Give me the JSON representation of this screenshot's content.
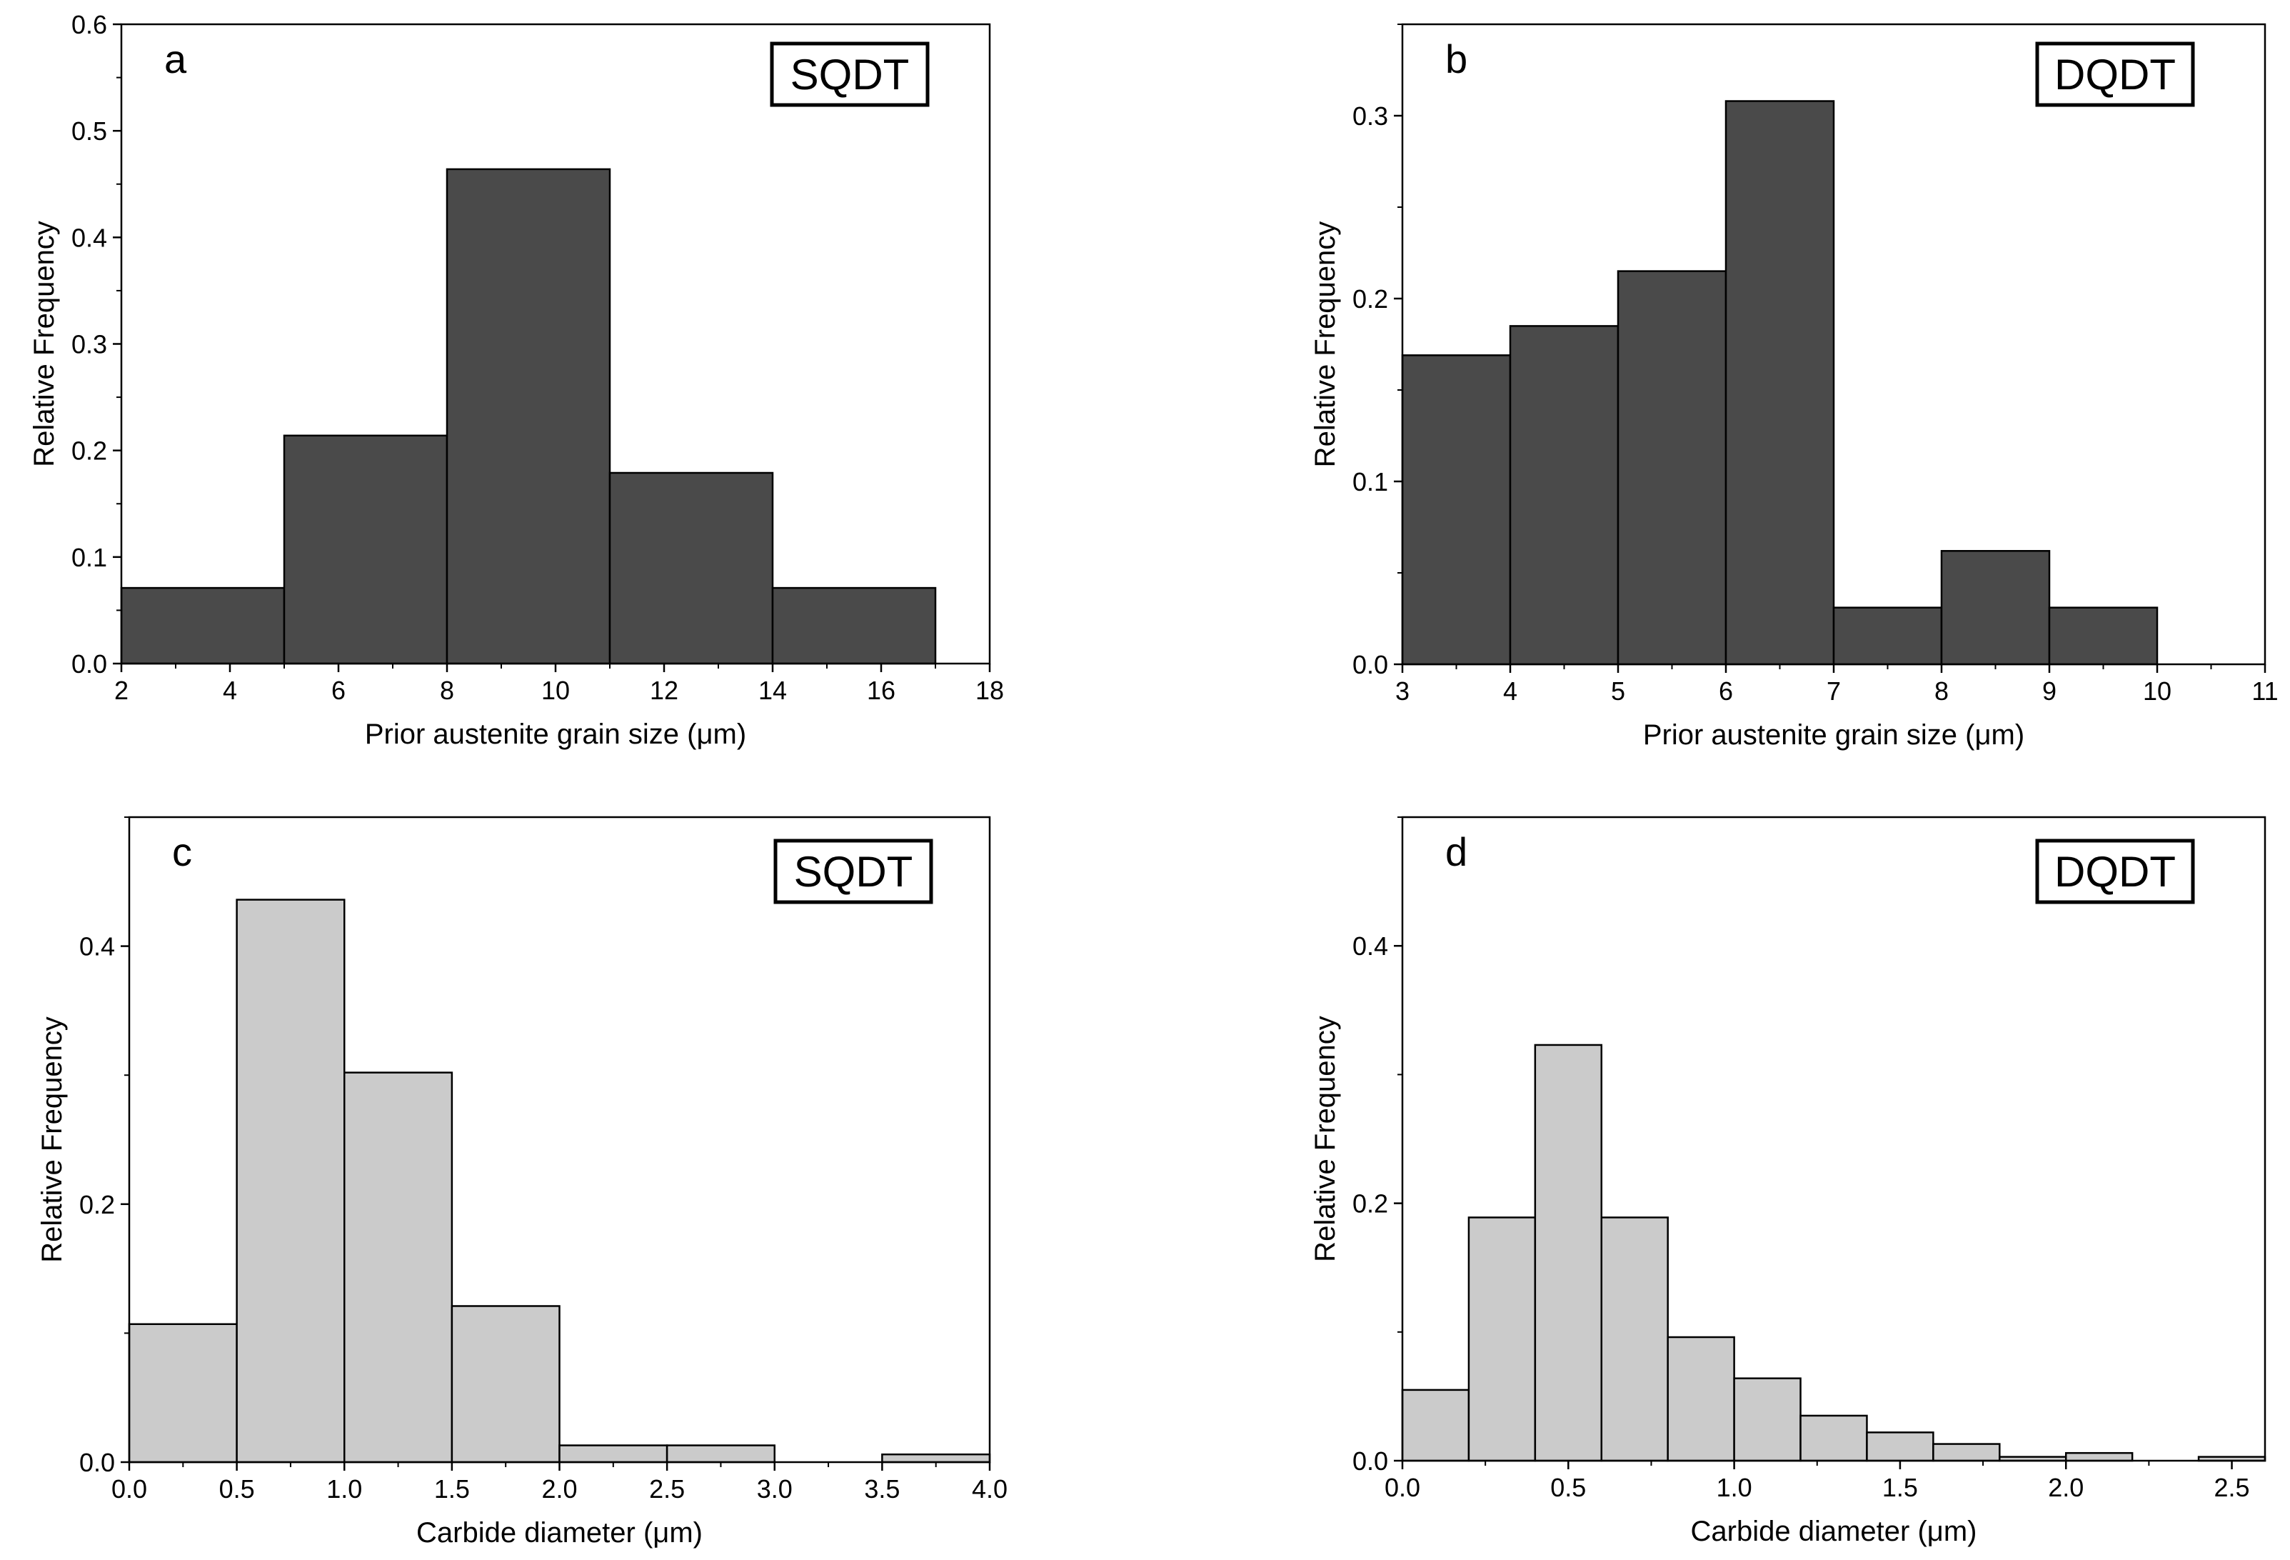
{
  "colors": {
    "dark_bar": "#4a4a4a",
    "light_bar": "#cbcbcb",
    "bar_stroke": "#000000",
    "axis": "#000000"
  },
  "chart_data": [
    {
      "panel": "a",
      "type": "histogram",
      "tag": "SQDT",
      "xlabel": "Prior austenite grain size (μm)",
      "ylabel": "Relative Frequency",
      "xlim": [
        2,
        18
      ],
      "ylim": [
        0,
        0.6
      ],
      "xticks": [
        2,
        4,
        6,
        8,
        10,
        12,
        14,
        16,
        18
      ],
      "xtick_labels": [
        "2",
        "4",
        "6",
        "8",
        "10",
        "12",
        "14",
        "16",
        "18"
      ],
      "yticks": [
        0,
        0.1,
        0.2,
        0.3,
        0.4,
        0.5,
        0.6
      ],
      "ytick_labels": [
        "0.0",
        "0.1",
        "0.2",
        "0.3",
        "0.4",
        "0.5",
        "0.6"
      ],
      "bin_edges": [
        2,
        5,
        8,
        11,
        14,
        17
      ],
      "values": [
        0.071,
        0.214,
        0.464,
        0.179,
        0.071
      ],
      "color": "dark"
    },
    {
      "panel": "b",
      "type": "histogram",
      "tag": "DQDT",
      "xlabel": "Prior austenite grain size (μm)",
      "ylabel": "Relative Frequency",
      "xlim": [
        3,
        11
      ],
      "ylim": [
        0,
        0.35
      ],
      "xticks": [
        3,
        4,
        5,
        6,
        7,
        8,
        9,
        10,
        11
      ],
      "xtick_labels": [
        "3",
        "4",
        "5",
        "6",
        "7",
        "8",
        "9",
        "10",
        "11"
      ],
      "yticks": [
        0,
        0.1,
        0.2,
        0.3
      ],
      "ytick_labels": [
        "0.0",
        "0.1",
        "0.2",
        "0.3"
      ],
      "bin_edges": [
        3,
        4,
        5,
        6,
        7,
        8,
        9,
        10
      ],
      "values": [
        0.169,
        0.185,
        0.215,
        0.308,
        0.031,
        0.062,
        0.031
      ],
      "color": "dark"
    },
    {
      "panel": "c",
      "type": "histogram",
      "tag": "SQDT",
      "xlabel": "Carbide diameter (μm)",
      "ylabel": "Relative Frequency",
      "xlim": [
        0,
        4
      ],
      "ylim": [
        0,
        0.5
      ],
      "xticks": [
        0,
        0.5,
        1,
        1.5,
        2,
        2.5,
        3,
        3.5,
        4
      ],
      "xtick_labels": [
        "0.0",
        "0.5",
        "1.0",
        "1.5",
        "2.0",
        "2.5",
        "3.0",
        "3.5",
        "4.0"
      ],
      "yticks": [
        0,
        0.2,
        0.4
      ],
      "ytick_labels": [
        "0.0",
        "0.2",
        "0.4"
      ],
      "bin_edges": [
        0,
        0.5,
        1,
        1.5,
        2,
        2.5,
        3,
        3.5,
        4
      ],
      "values": [
        0.107,
        0.436,
        0.302,
        0.121,
        0.013,
        0.013,
        0.0,
        0.006
      ],
      "color": "light"
    },
    {
      "panel": "d",
      "type": "histogram",
      "tag": "DQDT",
      "xlabel": "Carbide diameter (μm)",
      "ylabel": "Relative Frequency",
      "xlim": [
        0,
        2.6
      ],
      "ylim": [
        0,
        0.5
      ],
      "xticks": [
        0,
        0.5,
        1,
        1.5,
        2,
        2.5
      ],
      "xtick_labels": [
        "0.0",
        "0.5",
        "1.0",
        "1.5",
        "2.0",
        "2.5"
      ],
      "yticks": [
        0,
        0.2,
        0.4
      ],
      "ytick_labels": [
        "0.0",
        "0.2",
        "0.4"
      ],
      "bin_edges": [
        0,
        0.2,
        0.4,
        0.6,
        0.8,
        1.0,
        1.2,
        1.4,
        1.6,
        1.8,
        2.0,
        2.2,
        2.4,
        2.6
      ],
      "values": [
        0.055,
        0.189,
        0.323,
        0.189,
        0.096,
        0.064,
        0.035,
        0.022,
        0.013,
        0.003,
        0.006,
        0.0,
        0.003
      ],
      "color": "light"
    }
  ]
}
